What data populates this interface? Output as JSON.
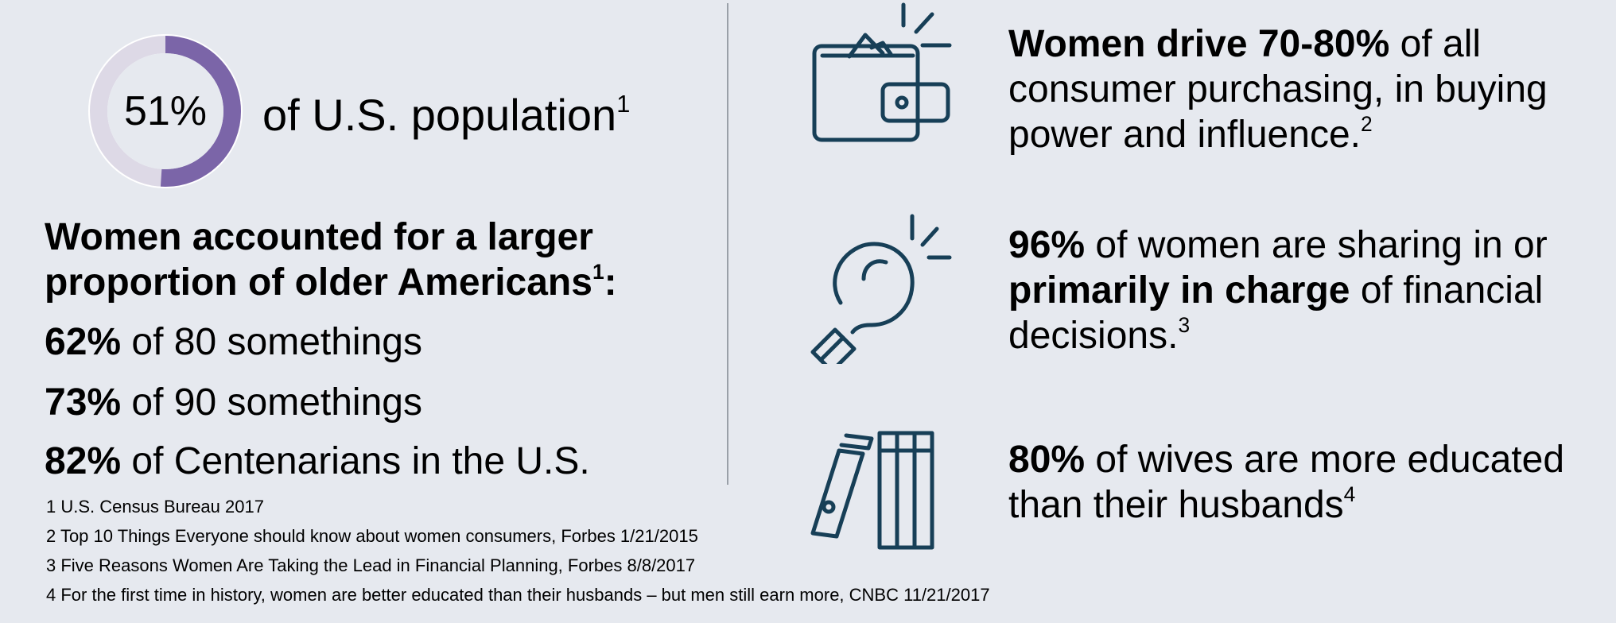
{
  "colors": {
    "background": "#e6e9ef",
    "donut_fill": "#7b65a8",
    "donut_track": "#ddd9e6",
    "icon_stroke": "#173f57",
    "divider": "#9aa0a8"
  },
  "population": {
    "percent_label": "51%",
    "percent_value": 51,
    "text": "of U.S. population",
    "ref": "1"
  },
  "older": {
    "heading_line1": "Women accounted for a larger",
    "heading_line2": "proportion of older Americans",
    "heading_ref": "1",
    "heading_colon": ":",
    "stats": [
      {
        "pct": "62%",
        "text": " of 80 somethings"
      },
      {
        "pct": "73%",
        "text": " of 90 somethings"
      },
      {
        "pct": "82%",
        "text": " of Centenarians in the U.S."
      }
    ]
  },
  "footnotes": [
    "1 U.S. Census Bureau 2017",
    "2 Top 10 Things Everyone should know about women consumers, Forbes 1/21/2015",
    "3 Five Reasons Women Are Taking the Lead in Financial Planning, Forbes 8/8/2017",
    "4 For the first time in history, women are better educated than their husbands – but men still earn more, CNBC 11/21/2017"
  ],
  "right": {
    "purchasing": {
      "icon": "wallet-icon",
      "bold": "Women drive 70-80%",
      "line1_rest": " of all",
      "line2": "consumer purchasing, in buying",
      "line3": "power and influence.",
      "ref": "2"
    },
    "financial": {
      "icon": "lightbulb-icon",
      "bold1": "96%",
      "line1_rest": " of women are sharing in or",
      "bold2": "primarily in charge",
      "line2_rest": " of financial",
      "line3": "decisions.",
      "ref": "3"
    },
    "education": {
      "icon": "books-icon",
      "bold": "80%",
      "line1_rest": " of wives are more educated",
      "line2": "than their husbands",
      "ref": "4"
    }
  }
}
